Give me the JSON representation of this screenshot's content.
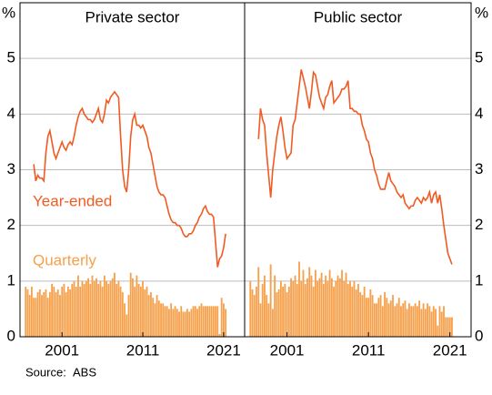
{
  "chart_data": [
    {
      "type": "combo",
      "title": "Private sector",
      "y_unit": "%",
      "annotations": [
        "Year-ended",
        "Quarterly"
      ],
      "xlim": [
        1995.8,
        2023.6
      ],
      "xticks": [
        2001,
        2011,
        2021
      ],
      "ylim": [
        0,
        6
      ],
      "yticks": [
        0,
        1,
        2,
        3,
        4,
        5
      ],
      "grid": true,
      "x": [
        1996.5,
        1996.75,
        1997,
        1997.25,
        1997.5,
        1997.75,
        1998,
        1998.25,
        1998.5,
        1998.75,
        1999,
        1999.25,
        1999.5,
        1999.75,
        2000,
        2000.25,
        2000.5,
        2000.75,
        2001,
        2001.25,
        2001.5,
        2001.75,
        2002,
        2002.25,
        2002.5,
        2002.75,
        2003,
        2003.25,
        2003.5,
        2003.75,
        2004,
        2004.25,
        2004.5,
        2004.75,
        2005,
        2005.25,
        2005.5,
        2005.75,
        2006,
        2006.25,
        2006.5,
        2006.75,
        2007,
        2007.25,
        2007.5,
        2007.75,
        2008,
        2008.25,
        2008.5,
        2008.75,
        2009,
        2009.25,
        2009.5,
        2009.75,
        2010,
        2010.25,
        2010.5,
        2010.75,
        2011,
        2011.25,
        2011.5,
        2011.75,
        2012,
        2012.25,
        2012.5,
        2012.75,
        2013,
        2013.25,
        2013.5,
        2013.75,
        2014,
        2014.25,
        2014.5,
        2014.75,
        2015,
        2015.25,
        2015.5,
        2015.75,
        2016,
        2016.25,
        2016.5,
        2016.75,
        2017,
        2017.25,
        2017.5,
        2017.75,
        2018,
        2018.25,
        2018.5,
        2018.75,
        2019,
        2019.25,
        2019.5,
        2019.75,
        2020,
        2020.25,
        2020.5,
        2020.75,
        2021,
        2021.25
      ],
      "series": [
        {
          "name": "Quarterly",
          "kind": "bar",
          "color": "#f7a04b",
          "values": [
            0.9,
            0.85,
            0.75,
            0.9,
            0.7,
            0.7,
            0.8,
            0.85,
            0.75,
            0.8,
            0.85,
            0.7,
            0.8,
            0.95,
            0.9,
            0.8,
            0.85,
            0.75,
            0.9,
            0.95,
            0.8,
            0.9,
            0.85,
            0.95,
            1.0,
            0.9,
            1.1,
            0.9,
            1.0,
            0.95,
            1.0,
            1.05,
            0.95,
            1.1,
            1.0,
            1.05,
            0.95,
            1.0,
            0.9,
            1.1,
            1.0,
            0.95,
            1.0,
            1.05,
            1.15,
            0.95,
            1.0,
            0.9,
            0.8,
            0.6,
            0.4,
            0.75,
            1.15,
            1.05,
            0.9,
            1.1,
            0.95,
            0.9,
            1.0,
            0.85,
            0.9,
            0.75,
            0.8,
            0.7,
            0.6,
            0.75,
            0.65,
            0.6,
            0.6,
            0.55,
            0.55,
            0.5,
            0.6,
            0.5,
            0.55,
            0.5,
            0.45,
            0.55,
            0.45,
            0.45,
            0.5,
            0.45,
            0.5,
            0.55,
            0.55,
            0.5,
            0.55,
            0.6,
            0.55,
            0.55,
            0.55,
            0.55,
            0.55,
            0.55,
            0.55,
            0.55,
            0.05,
            0.7,
            0.6,
            0.5
          ]
        },
        {
          "name": "Year-ended",
          "kind": "line",
          "color": "#f15a22",
          "values": [
            null,
            null,
            null,
            null,
            3.1,
            2.8,
            2.9,
            2.85,
            2.85,
            2.8,
            3.3,
            3.6,
            3.7,
            3.5,
            3.3,
            3.2,
            3.3,
            3.4,
            3.5,
            3.4,
            3.35,
            3.45,
            3.5,
            3.45,
            3.6,
            3.8,
            3.95,
            4.05,
            4.1,
            4.0,
            3.95,
            3.9,
            3.9,
            3.85,
            3.9,
            4.0,
            4.1,
            3.9,
            3.85,
            4.0,
            4.25,
            4.2,
            4.3,
            4.35,
            4.4,
            4.35,
            4.3,
            3.6,
            3.0,
            2.7,
            2.6,
            3.0,
            3.6,
            3.9,
            4.0,
            3.8,
            3.8,
            3.75,
            3.8,
            3.7,
            3.6,
            3.4,
            3.3,
            3.1,
            2.9,
            2.7,
            2.6,
            2.55,
            2.55,
            2.5,
            2.35,
            2.2,
            2.1,
            2.05,
            2.05,
            2.0,
            2.0,
            1.95,
            1.85,
            1.8,
            1.8,
            1.85,
            1.85,
            1.9,
            2.0,
            2.05,
            2.15,
            2.2,
            2.3,
            2.35,
            2.25,
            2.2,
            2.2,
            2.15,
            1.7,
            1.25,
            1.4,
            1.45,
            1.6,
            1.85
          ]
        }
      ]
    },
    {
      "type": "combo",
      "title": "Public sector",
      "y_unit": "%",
      "xlim": [
        1995.8,
        2023.6
      ],
      "xticks": [
        2001,
        2011,
        2021
      ],
      "ylim": [
        0,
        6
      ],
      "yticks": [
        0,
        1,
        2,
        3,
        4,
        5
      ],
      "grid": true,
      "x": [
        1996.5,
        1996.75,
        1997,
        1997.25,
        1997.5,
        1997.75,
        1998,
        1998.25,
        1998.5,
        1998.75,
        1999,
        1999.25,
        1999.5,
        1999.75,
        2000,
        2000.25,
        2000.5,
        2000.75,
        2001,
        2001.25,
        2001.5,
        2001.75,
        2002,
        2002.25,
        2002.5,
        2002.75,
        2003,
        2003.25,
        2003.5,
        2003.75,
        2004,
        2004.25,
        2004.5,
        2004.75,
        2005,
        2005.25,
        2005.5,
        2005.75,
        2006,
        2006.25,
        2006.5,
        2006.75,
        2007,
        2007.25,
        2007.5,
        2007.75,
        2008,
        2008.25,
        2008.5,
        2008.75,
        2009,
        2009.25,
        2009.5,
        2009.75,
        2010,
        2010.25,
        2010.5,
        2010.75,
        2011,
        2011.25,
        2011.5,
        2011.75,
        2012,
        2012.25,
        2012.5,
        2012.75,
        2013,
        2013.25,
        2013.5,
        2013.75,
        2014,
        2014.25,
        2014.5,
        2014.75,
        2015,
        2015.25,
        2015.5,
        2015.75,
        2016,
        2016.25,
        2016.5,
        2016.75,
        2017,
        2017.25,
        2017.5,
        2017.75,
        2018,
        2018.25,
        2018.5,
        2018.75,
        2019,
        2019.25,
        2019.5,
        2019.75,
        2020,
        2020.25,
        2020.5,
        2020.75,
        2021,
        2021.25
      ],
      "series": [
        {
          "name": "Quarterly",
          "kind": "bar",
          "color": "#f7a04b",
          "values": [
            1.0,
            0.85,
            0.75,
            0.9,
            1.25,
            0.6,
            0.95,
            1.1,
            0.75,
            0.6,
            1.3,
            0.5,
            1.1,
            0.8,
            0.85,
            1.0,
            0.9,
            0.95,
            0.8,
            0.9,
            1.05,
            1.0,
            1.1,
            0.95,
            1.35,
            1.0,
            1.2,
            0.95,
            1.05,
            1.25,
            1.1,
            0.9,
            1.2,
            1.0,
            1.05,
            1.15,
            0.95,
            1.1,
            1.0,
            1.2,
            1.05,
            0.9,
            1.0,
            1.1,
            1.05,
            1.2,
            1.0,
            1.15,
            0.95,
            1.0,
            0.9,
            1.0,
            0.85,
            0.95,
            0.8,
            0.75,
            0.9,
            0.7,
            0.7,
            0.85,
            0.75,
            0.6,
            0.6,
            0.7,
            0.75,
            0.55,
            0.8,
            0.7,
            0.6,
            0.65,
            0.75,
            0.55,
            0.6,
            0.7,
            0.55,
            0.6,
            0.65,
            0.5,
            0.6,
            0.55,
            0.55,
            0.6,
            0.55,
            0.65,
            0.5,
            0.6,
            0.5,
            0.6,
            0.55,
            0.45,
            0.55,
            0.5,
            0.2,
            0.55,
            0.45,
            0.55,
            0.35,
            0.35,
            0.35,
            0.35
          ]
        },
        {
          "name": "Year-ended",
          "kind": "line",
          "color": "#f15a22",
          "values": [
            null,
            null,
            null,
            null,
            3.55,
            4.1,
            3.9,
            3.8,
            3.3,
            2.9,
            2.5,
            3.0,
            3.3,
            3.6,
            3.8,
            3.95,
            3.7,
            3.4,
            3.2,
            3.25,
            3.3,
            3.8,
            3.9,
            4.2,
            4.5,
            4.8,
            4.65,
            4.5,
            4.3,
            4.1,
            4.4,
            4.75,
            4.7,
            4.5,
            4.3,
            4.2,
            4.1,
            4.3,
            4.35,
            4.5,
            4.6,
            4.2,
            4.25,
            4.3,
            4.35,
            4.45,
            4.45,
            4.5,
            4.6,
            4.1,
            4.1,
            4.05,
            4.05,
            4.0,
            4.0,
            3.8,
            3.7,
            3.55,
            3.5,
            3.3,
            3.2,
            3.0,
            2.9,
            2.75,
            2.65,
            2.65,
            2.65,
            2.8,
            2.95,
            2.8,
            2.75,
            2.7,
            2.6,
            2.55,
            2.5,
            2.55,
            2.4,
            2.35,
            2.3,
            2.35,
            2.35,
            2.45,
            2.5,
            2.45,
            2.4,
            2.5,
            2.45,
            2.5,
            2.6,
            2.4,
            2.55,
            2.6,
            2.4,
            2.55,
            2.3,
            2.0,
            1.75,
            1.5,
            1.4,
            1.3
          ]
        }
      ]
    }
  ],
  "source_label": "Source:",
  "source": "ABS"
}
